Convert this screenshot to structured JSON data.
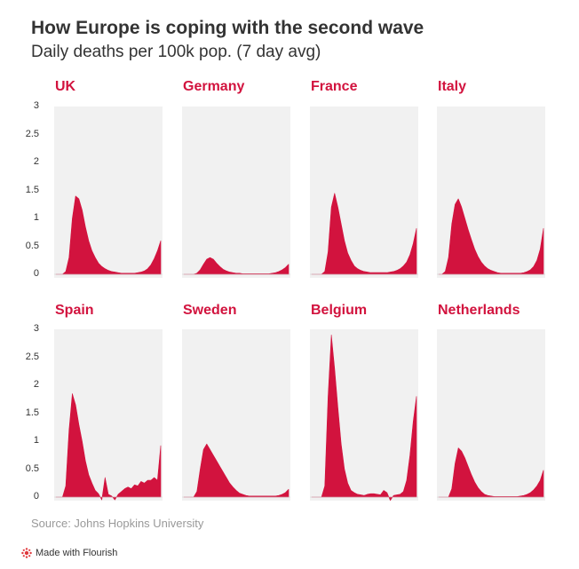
{
  "title": "How Europe is coping with the second wave",
  "subtitle": "Daily deaths per 100k pop. (7 day avg)",
  "source": "Source: Johns Hopkins University",
  "footer": {
    "made_with": "Made with Flourish",
    "logo_icon": "flourish-logo-icon"
  },
  "colors": {
    "accent": "#d2133e",
    "panel_bg": "#f1f1f1"
  },
  "chart_data": {
    "type": "area",
    "layout": "small-multiples",
    "ylim": [
      0,
      3
    ],
    "yticks": [
      "3",
      "2.5",
      "2",
      "1.5",
      "1",
      "0.5",
      "0"
    ],
    "series": [
      {
        "name": "UK",
        "shape": "spring",
        "values": [
          0,
          0,
          0,
          0.05,
          0.3,
          1.0,
          1.4,
          1.35,
          1.15,
          0.85,
          0.6,
          0.42,
          0.3,
          0.2,
          0.14,
          0.1,
          0.07,
          0.05,
          0.04,
          0.03,
          0.02,
          0.02,
          0.02,
          0.02,
          0.02,
          0.03,
          0.04,
          0.06,
          0.1,
          0.17,
          0.28,
          0.42,
          0.6
        ]
      },
      {
        "name": "Germany",
        "shape": "spring",
        "values": [
          0,
          0,
          0,
          0,
          0.02,
          0.08,
          0.18,
          0.27,
          0.3,
          0.27,
          0.2,
          0.14,
          0.09,
          0.06,
          0.04,
          0.03,
          0.02,
          0.02,
          0.01,
          0.01,
          0.01,
          0.01,
          0.01,
          0.01,
          0.01,
          0.01,
          0.01,
          0.02,
          0.03,
          0.05,
          0.08,
          0.12,
          0.18
        ]
      },
      {
        "name": "France",
        "shape": "spring",
        "values": [
          0,
          0,
          0,
          0,
          0.05,
          0.4,
          1.2,
          1.45,
          1.2,
          0.9,
          0.6,
          0.38,
          0.25,
          0.15,
          0.1,
          0.07,
          0.05,
          0.04,
          0.03,
          0.03,
          0.03,
          0.03,
          0.03,
          0.03,
          0.04,
          0.05,
          0.07,
          0.1,
          0.15,
          0.22,
          0.35,
          0.55,
          0.82
        ]
      },
      {
        "name": "Italy",
        "shape": "spring",
        "values": [
          0,
          0,
          0.05,
          0.3,
          0.9,
          1.25,
          1.35,
          1.2,
          1.0,
          0.8,
          0.62,
          0.45,
          0.32,
          0.22,
          0.15,
          0.1,
          0.07,
          0.05,
          0.03,
          0.02,
          0.02,
          0.02,
          0.02,
          0.02,
          0.02,
          0.02,
          0.03,
          0.05,
          0.08,
          0.14,
          0.25,
          0.45,
          0.82
        ]
      },
      {
        "name": "Spain",
        "shape": "spring",
        "values": [
          0,
          0,
          0,
          0.2,
          1.2,
          1.85,
          1.65,
          1.3,
          1.0,
          0.65,
          0.4,
          0.25,
          0.12,
          0.06,
          -0.05,
          0.35,
          0.05,
          0.02,
          -0.05,
          0.05,
          0.1,
          0.15,
          0.18,
          0.15,
          0.22,
          0.2,
          0.28,
          0.25,
          0.3,
          0.3,
          0.35,
          0.3,
          0.92
        ]
      },
      {
        "name": "Sweden",
        "shape": "spring",
        "values": [
          0,
          0,
          0,
          0,
          0.1,
          0.5,
          0.85,
          0.95,
          0.85,
          0.75,
          0.65,
          0.55,
          0.45,
          0.35,
          0.25,
          0.18,
          0.12,
          0.07,
          0.05,
          0.03,
          0.02,
          0.02,
          0.02,
          0.02,
          0.02,
          0.02,
          0.02,
          0.02,
          0.02,
          0.03,
          0.05,
          0.08,
          0.14
        ]
      },
      {
        "name": "Belgium",
        "shape": "spring",
        "values": [
          0,
          0,
          0,
          0,
          0.2,
          1.8,
          2.9,
          2.3,
          1.6,
          0.95,
          0.5,
          0.25,
          0.12,
          0.08,
          0.05,
          0.04,
          0.03,
          0.05,
          0.06,
          0.06,
          0.05,
          0.04,
          0.12,
          0.08,
          -0.06,
          0.03,
          0.04,
          0.05,
          0.1,
          0.3,
          0.75,
          1.35,
          1.8
        ]
      },
      {
        "name": "Netherlands",
        "shape": "spring",
        "values": [
          0,
          0,
          0,
          0,
          0.15,
          0.6,
          0.88,
          0.82,
          0.7,
          0.55,
          0.4,
          0.27,
          0.17,
          0.1,
          0.05,
          0.03,
          0.02,
          0.01,
          0.01,
          0.01,
          0.01,
          0.01,
          0.01,
          0.01,
          0.01,
          0.02,
          0.03,
          0.05,
          0.08,
          0.13,
          0.2,
          0.3,
          0.48
        ]
      }
    ]
  }
}
